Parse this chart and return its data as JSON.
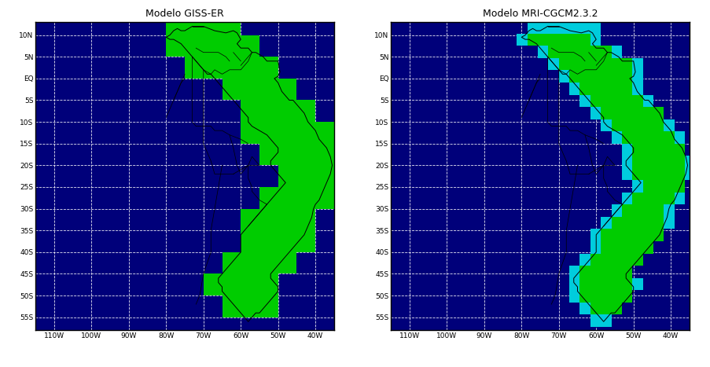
{
  "title_left": "Modelo GISS-ER",
  "title_right": "Modelo MRI-CGCM2.3.2",
  "lon_min": -115,
  "lon_max": -35,
  "lat_min": -58,
  "lat_max": 13,
  "ocean_color": "#00007A",
  "land_color": "#00CC00",
  "border_color": "#000000",
  "grid_color": "#FFFFFF",
  "title_color": "#000000",
  "fig_bg_color": "#FFFFFF",
  "giss_resolution": 5,
  "mri_resolution": 2.8125,
  "cyan_color": "#00CCDD",
  "lon_ticks": [
    -110,
    -100,
    -90,
    -80,
    -70,
    -60,
    -50,
    -40
  ],
  "lat_ticks": [
    10,
    5,
    0,
    -5,
    -10,
    -15,
    -20,
    -25,
    -30,
    -35,
    -40,
    -45,
    -50,
    -55
  ],
  "lon_labels": [
    "110W",
    "100W",
    "90W",
    "80W",
    "70W",
    "60W",
    "50W",
    "40W"
  ],
  "lat_labels": [
    "10N",
    "5N",
    "EQ",
    "5S",
    "10S",
    "15S",
    "20S",
    "25S",
    "30S",
    "35S",
    "40S",
    "45S",
    "50S",
    "55S"
  ]
}
